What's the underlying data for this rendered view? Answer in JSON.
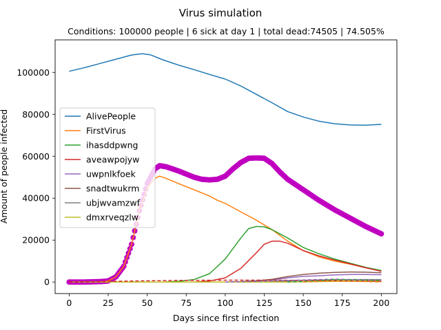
{
  "chart_data": {
    "type": "line",
    "suptitle": "Virus simulation",
    "title": "Conditions: 100000 people | 6 sick at day 1 | total dead:74505 | 74.505%",
    "xlabel": "Days since first infection",
    "ylabel": "Amount of people infected",
    "xlim": [
      -9,
      210
    ],
    "ylim": [
      -5500,
      115500
    ],
    "xticks": [
      0,
      25,
      50,
      75,
      100,
      125,
      150,
      175,
      200
    ],
    "yticks": [
      0,
      20000,
      40000,
      60000,
      80000,
      100000
    ],
    "grid": false,
    "legend_position": "center-left",
    "series": [
      {
        "name": "AlivePeople",
        "color": "#1f77b4",
        "style": "solid",
        "points": [
          [
            0,
            100500
          ],
          [
            10,
            102300
          ],
          [
            20,
            104300
          ],
          [
            30,
            106300
          ],
          [
            40,
            108300
          ],
          [
            47,
            108900
          ],
          [
            52,
            108400
          ],
          [
            60,
            106000
          ],
          [
            70,
            103500
          ],
          [
            80,
            101300
          ],
          [
            90,
            99000
          ],
          [
            100,
            96800
          ],
          [
            110,
            93500
          ],
          [
            120,
            89500
          ],
          [
            130,
            85500
          ],
          [
            140,
            81300
          ],
          [
            150,
            78700
          ],
          [
            160,
            76700
          ],
          [
            170,
            75500
          ],
          [
            180,
            74900
          ],
          [
            190,
            74800
          ],
          [
            200,
            75200
          ]
        ]
      },
      {
        "name": "FirstVirus",
        "color": "#ff7f0e",
        "style": "solid",
        "points": [
          [
            0,
            0
          ],
          [
            20,
            0
          ],
          [
            25,
            500
          ],
          [
            30,
            2500
          ],
          [
            35,
            7500
          ],
          [
            40,
            18000
          ],
          [
            45,
            34000
          ],
          [
            50,
            45000
          ],
          [
            55,
            49500
          ],
          [
            58,
            50500
          ],
          [
            62,
            49500
          ],
          [
            70,
            47000
          ],
          [
            80,
            44000
          ],
          [
            90,
            41000
          ],
          [
            95,
            39000
          ],
          [
            100,
            37500
          ],
          [
            110,
            33500
          ],
          [
            120,
            29500
          ],
          [
            130,
            25000
          ],
          [
            140,
            19500
          ],
          [
            150,
            15000
          ],
          [
            160,
            12000
          ],
          [
            170,
            10000
          ],
          [
            180,
            8500
          ],
          [
            190,
            6800
          ],
          [
            200,
            5400
          ]
        ]
      },
      {
        "name": "ihasddpwng",
        "color": "#2ca02c",
        "style": "solid",
        "points": [
          [
            0,
            0
          ],
          [
            60,
            0
          ],
          [
            70,
            300
          ],
          [
            80,
            1200
          ],
          [
            90,
            4000
          ],
          [
            100,
            11000
          ],
          [
            110,
            21000
          ],
          [
            115,
            25500
          ],
          [
            120,
            26500
          ],
          [
            125,
            26300
          ],
          [
            130,
            25000
          ],
          [
            140,
            21000
          ],
          [
            150,
            16500
          ],
          [
            160,
            13500
          ],
          [
            170,
            11000
          ],
          [
            180,
            9000
          ],
          [
            190,
            7000
          ],
          [
            200,
            5500
          ]
        ]
      },
      {
        "name": "aveawpojyw",
        "color": "#d62728",
        "style": "solid",
        "points": [
          [
            0,
            0
          ],
          [
            80,
            0
          ],
          [
            90,
            500
          ],
          [
            100,
            2000
          ],
          [
            110,
            6500
          ],
          [
            120,
            14000
          ],
          [
            125,
            18000
          ],
          [
            130,
            19500
          ],
          [
            135,
            19500
          ],
          [
            140,
            18500
          ],
          [
            150,
            15000
          ],
          [
            160,
            12500
          ],
          [
            170,
            10500
          ],
          [
            180,
            8700
          ],
          [
            190,
            6800
          ],
          [
            200,
            5100
          ]
        ]
      },
      {
        "name": "uwpnlkfoek",
        "color": "#9467bd",
        "style": "solid",
        "points": [
          [
            0,
            0
          ],
          [
            100,
            0
          ],
          [
            110,
            200
          ],
          [
            120,
            500
          ],
          [
            130,
            1000
          ],
          [
            140,
            2000
          ],
          [
            150,
            2700
          ],
          [
            160,
            3000
          ],
          [
            170,
            3400
          ],
          [
            180,
            3600
          ],
          [
            190,
            3600
          ],
          [
            200,
            3500
          ]
        ]
      },
      {
        "name": "snadtwukrm",
        "color": "#8c564b",
        "style": "solid",
        "points": [
          [
            0,
            0
          ],
          [
            100,
            0
          ],
          [
            110,
            200
          ],
          [
            120,
            600
          ],
          [
            130,
            1300
          ],
          [
            140,
            2600
          ],
          [
            150,
            3600
          ],
          [
            160,
            4200
          ],
          [
            170,
            4600
          ],
          [
            180,
            4800
          ],
          [
            190,
            4700
          ],
          [
            200,
            4400
          ]
        ]
      },
      {
        "name": "ubjwvamzwf",
        "color": "#7f7f7f",
        "style": "solid",
        "points": [
          [
            0,
            0
          ],
          [
            120,
            0
          ],
          [
            130,
            200
          ],
          [
            140,
            500
          ],
          [
            150,
            800
          ],
          [
            160,
            1000
          ],
          [
            170,
            1100
          ],
          [
            180,
            1200
          ],
          [
            190,
            1200
          ],
          [
            200,
            1200
          ]
        ]
      },
      {
        "name": "dmxrveqzlw",
        "color": "#bcbd22",
        "style": "solid",
        "points": [
          [
            0,
            0
          ],
          [
            140,
            0
          ],
          [
            150,
            100
          ],
          [
            160,
            200
          ],
          [
            170,
            300
          ],
          [
            180,
            350
          ],
          [
            190,
            350
          ],
          [
            200,
            350
          ]
        ]
      },
      {
        "color": "#d62728",
        "style": "dashed",
        "points": [
          [
            0,
            0
          ],
          [
            25,
            300
          ],
          [
            50,
            600
          ],
          [
            75,
            800
          ],
          [
            100,
            900
          ],
          [
            125,
            900
          ],
          [
            150,
            800
          ],
          [
            175,
            600
          ],
          [
            200,
            400
          ]
        ]
      },
      {
        "color": "#9467bd",
        "style": "dashed",
        "points": [
          [
            100,
            0
          ],
          [
            120,
            300
          ],
          [
            140,
            800
          ],
          [
            160,
            1200
          ],
          [
            170,
            1400
          ],
          [
            180,
            1200
          ],
          [
            200,
            1000
          ]
        ]
      },
      {
        "color": "#2ca02c",
        "style": "dashed",
        "points": [
          [
            140,
            0
          ],
          [
            160,
            600
          ],
          [
            170,
            1200
          ],
          [
            180,
            1000
          ],
          [
            200,
            800
          ]
        ]
      },
      {
        "color": "#ff7f0e",
        "style": "dashed",
        "points": [
          [
            150,
            0
          ],
          [
            160,
            300
          ],
          [
            170,
            500
          ],
          [
            180,
            400
          ],
          [
            190,
            200
          ],
          [
            200,
            0
          ]
        ]
      },
      {
        "color": "#c000c0",
        "style": "markers",
        "points": [
          [
            0,
            0
          ],
          [
            10,
            0
          ],
          [
            20,
            200
          ],
          [
            25,
            500
          ],
          [
            30,
            2500
          ],
          [
            35,
            7500
          ],
          [
            40,
            18000
          ],
          [
            45,
            34000
          ],
          [
            50,
            47000
          ],
          [
            55,
            54000
          ],
          [
            58,
            55500
          ],
          [
            62,
            55000
          ],
          [
            70,
            53000
          ],
          [
            75,
            51500
          ],
          [
            80,
            50000
          ],
          [
            85,
            49000
          ],
          [
            90,
            48700
          ],
          [
            95,
            49000
          ],
          [
            100,
            50500
          ],
          [
            105,
            54000
          ],
          [
            110,
            57000
          ],
          [
            115,
            59000
          ],
          [
            120,
            59200
          ],
          [
            125,
            59000
          ],
          [
            130,
            56500
          ],
          [
            135,
            52500
          ],
          [
            140,
            49000
          ],
          [
            150,
            44000
          ],
          [
            160,
            39000
          ],
          [
            170,
            34500
          ],
          [
            180,
            30500
          ],
          [
            190,
            26500
          ],
          [
            200,
            23000
          ]
        ]
      }
    ]
  }
}
